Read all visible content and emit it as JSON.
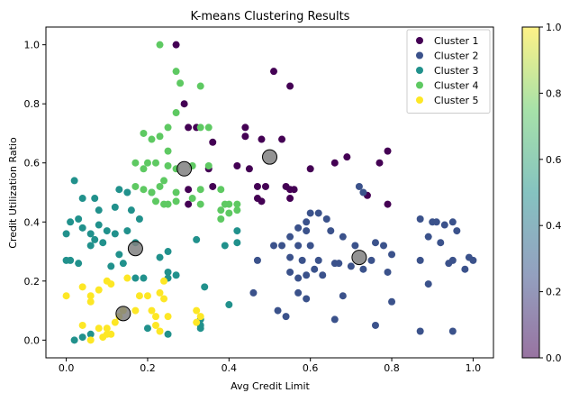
{
  "chart_data": {
    "type": "scatter",
    "title": "K-means Clustering Results",
    "xlabel": "Avg Credit Limit",
    "ylabel": "Credit Utilization Ratio",
    "xlim": [
      -0.05,
      1.05
    ],
    "ylim": [
      -0.06,
      1.06
    ],
    "x_ticks": [
      "0.0",
      "0.2",
      "0.4",
      "0.6",
      "0.8",
      "1.0"
    ],
    "y_ticks": [
      "0.0",
      "0.2",
      "0.4",
      "0.6",
      "0.8",
      "1.0"
    ],
    "grid": false,
    "legend_position": "top-right",
    "colorbar": {
      "range": [
        0.0,
        1.0
      ],
      "ticks": [
        "0.0",
        "0.2",
        "0.4",
        "0.6",
        "0.8",
        "1.0"
      ],
      "colormap": "viridis"
    },
    "series": [
      {
        "name": "Cluster 1",
        "color": "#440154",
        "points": [
          [
            0.27,
            1.0
          ],
          [
            0.51,
            0.91
          ],
          [
            0.55,
            0.86
          ],
          [
            0.29,
            0.8
          ],
          [
            0.3,
            0.72
          ],
          [
            0.32,
            0.72
          ],
          [
            0.44,
            0.72
          ],
          [
            0.44,
            0.69
          ],
          [
            0.48,
            0.68
          ],
          [
            0.53,
            0.68
          ],
          [
            0.36,
            0.67
          ],
          [
            0.66,
            0.6
          ],
          [
            0.6,
            0.58
          ],
          [
            0.42,
            0.59
          ],
          [
            0.45,
            0.58
          ],
          [
            0.69,
            0.62
          ],
          [
            0.77,
            0.6
          ],
          [
            0.79,
            0.64
          ],
          [
            0.3,
            0.51
          ],
          [
            0.36,
            0.52
          ],
          [
            0.47,
            0.52
          ],
          [
            0.49,
            0.52
          ],
          [
            0.54,
            0.52
          ],
          [
            0.55,
            0.51
          ],
          [
            0.47,
            0.48
          ],
          [
            0.48,
            0.47
          ],
          [
            0.55,
            0.48
          ],
          [
            0.56,
            0.51
          ],
          [
            0.3,
            0.46
          ],
          [
            0.74,
            0.49
          ],
          [
            0.79,
            0.46
          ],
          [
            0.35,
            0.58
          ]
        ]
      },
      {
        "name": "Cluster 2",
        "color": "#3b528b",
        "points": [
          [
            0.72,
            0.52
          ],
          [
            0.73,
            0.5
          ],
          [
            0.6,
            0.43
          ],
          [
            0.59,
            0.4
          ],
          [
            0.62,
            0.43
          ],
          [
            0.64,
            0.41
          ],
          [
            0.57,
            0.38
          ],
          [
            0.59,
            0.37
          ],
          [
            0.51,
            0.32
          ],
          [
            0.53,
            0.32
          ],
          [
            0.55,
            0.35
          ],
          [
            0.57,
            0.32
          ],
          [
            0.6,
            0.32
          ],
          [
            0.65,
            0.37
          ],
          [
            0.68,
            0.35
          ],
          [
            0.71,
            0.32
          ],
          [
            0.76,
            0.33
          ],
          [
            0.78,
            0.32
          ],
          [
            0.47,
            0.27
          ],
          [
            0.55,
            0.28
          ],
          [
            0.58,
            0.27
          ],
          [
            0.62,
            0.27
          ],
          [
            0.66,
            0.26
          ],
          [
            0.67,
            0.26
          ],
          [
            0.7,
            0.25
          ],
          [
            0.73,
            0.24
          ],
          [
            0.75,
            0.27
          ],
          [
            0.8,
            0.29
          ],
          [
            0.87,
            0.41
          ],
          [
            0.89,
            0.35
          ],
          [
            0.9,
            0.4
          ],
          [
            0.91,
            0.4
          ],
          [
            0.93,
            0.39
          ],
          [
            0.95,
            0.4
          ],
          [
            0.92,
            0.33
          ],
          [
            0.96,
            0.37
          ],
          [
            0.99,
            0.28
          ],
          [
            1.0,
            0.27
          ],
          [
            0.98,
            0.24
          ],
          [
            0.94,
            0.26
          ],
          [
            0.95,
            0.27
          ],
          [
            0.87,
            0.27
          ],
          [
            0.55,
            0.23
          ],
          [
            0.57,
            0.21
          ],
          [
            0.59,
            0.22
          ],
          [
            0.61,
            0.24
          ],
          [
            0.63,
            0.22
          ],
          [
            0.79,
            0.23
          ],
          [
            0.8,
            0.13
          ],
          [
            0.52,
            0.1
          ],
          [
            0.54,
            0.08
          ],
          [
            0.57,
            0.16
          ],
          [
            0.59,
            0.14
          ],
          [
            0.66,
            0.07
          ],
          [
            0.68,
            0.15
          ],
          [
            0.76,
            0.05
          ],
          [
            0.89,
            0.19
          ],
          [
            0.87,
            0.03
          ],
          [
            0.95,
            0.03
          ],
          [
            0.46,
            0.16
          ]
        ]
      },
      {
        "name": "Cluster 3",
        "color": "#21918c",
        "points": [
          [
            0.02,
            0.54
          ],
          [
            0.04,
            0.48
          ],
          [
            0.07,
            0.48
          ],
          [
            0.01,
            0.4
          ],
          [
            0.03,
            0.41
          ],
          [
            0.04,
            0.38
          ],
          [
            0.06,
            0.36
          ],
          [
            0.08,
            0.39
          ],
          [
            0.0,
            0.36
          ],
          [
            0.07,
            0.34
          ],
          [
            0.09,
            0.33
          ],
          [
            0.1,
            0.37
          ],
          [
            0.12,
            0.36
          ],
          [
            0.12,
            0.45
          ],
          [
            0.13,
            0.51
          ],
          [
            0.15,
            0.5
          ],
          [
            0.16,
            0.44
          ],
          [
            0.18,
            0.41
          ],
          [
            0.15,
            0.37
          ],
          [
            0.17,
            0.33
          ],
          [
            0.21,
            0.5
          ],
          [
            0.0,
            0.27
          ],
          [
            0.03,
            0.26
          ],
          [
            0.06,
            0.32
          ],
          [
            0.11,
            0.25
          ],
          [
            0.13,
            0.29
          ],
          [
            0.14,
            0.26
          ],
          [
            0.17,
            0.21
          ],
          [
            0.19,
            0.21
          ],
          [
            0.23,
            0.28
          ],
          [
            0.25,
            0.3
          ],
          [
            0.27,
            0.22
          ],
          [
            0.32,
            0.34
          ],
          [
            0.34,
            0.18
          ],
          [
            0.39,
            0.32
          ],
          [
            0.42,
            0.37
          ],
          [
            0.42,
            0.33
          ],
          [
            0.4,
            0.12
          ],
          [
            0.25,
            0.23
          ],
          [
            0.25,
            0.02
          ],
          [
            0.02,
            0.0
          ],
          [
            0.04,
            0.01
          ],
          [
            0.06,
            0.02
          ],
          [
            0.2,
            0.04
          ],
          [
            0.33,
            0.05
          ],
          [
            0.33,
            0.07
          ],
          [
            0.33,
            0.04
          ],
          [
            0.25,
            0.21
          ],
          [
            0.08,
            0.44
          ],
          [
            0.01,
            0.27
          ]
        ]
      },
      {
        "name": "Cluster 4",
        "color": "#5ec962",
        "points": [
          [
            0.23,
            1.0
          ],
          [
            0.27,
            0.91
          ],
          [
            0.28,
            0.87
          ],
          [
            0.33,
            0.86
          ],
          [
            0.27,
            0.77
          ],
          [
            0.25,
            0.72
          ],
          [
            0.33,
            0.72
          ],
          [
            0.35,
            0.72
          ],
          [
            0.19,
            0.7
          ],
          [
            0.21,
            0.68
          ],
          [
            0.23,
            0.69
          ],
          [
            0.25,
            0.64
          ],
          [
            0.2,
            0.6
          ],
          [
            0.17,
            0.6
          ],
          [
            0.19,
            0.58
          ],
          [
            0.22,
            0.6
          ],
          [
            0.25,
            0.59
          ],
          [
            0.27,
            0.58
          ],
          [
            0.31,
            0.59
          ],
          [
            0.35,
            0.59
          ],
          [
            0.24,
            0.54
          ],
          [
            0.17,
            0.52
          ],
          [
            0.19,
            0.51
          ],
          [
            0.21,
            0.5
          ],
          [
            0.23,
            0.52
          ],
          [
            0.27,
            0.5
          ],
          [
            0.33,
            0.51
          ],
          [
            0.38,
            0.51
          ],
          [
            0.22,
            0.47
          ],
          [
            0.24,
            0.46
          ],
          [
            0.27,
            0.47
          ],
          [
            0.33,
            0.46
          ],
          [
            0.39,
            0.46
          ],
          [
            0.4,
            0.46
          ],
          [
            0.42,
            0.46
          ],
          [
            0.38,
            0.44
          ],
          [
            0.4,
            0.43
          ],
          [
            0.38,
            0.41
          ],
          [
            0.42,
            0.44
          ],
          [
            0.25,
            0.46
          ],
          [
            0.31,
            0.48
          ]
        ]
      },
      {
        "name": "Cluster 5",
        "color": "#fde725",
        "points": [
          [
            0.0,
            0.15
          ],
          [
            0.04,
            0.18
          ],
          [
            0.06,
            0.15
          ],
          [
            0.06,
            0.13
          ],
          [
            0.08,
            0.17
          ],
          [
            0.1,
            0.2
          ],
          [
            0.11,
            0.19
          ],
          [
            0.15,
            0.21
          ],
          [
            0.18,
            0.15
          ],
          [
            0.2,
            0.15
          ],
          [
            0.23,
            0.16
          ],
          [
            0.24,
            0.14
          ],
          [
            0.24,
            0.2
          ],
          [
            0.21,
            0.1
          ],
          [
            0.22,
            0.08
          ],
          [
            0.25,
            0.08
          ],
          [
            0.17,
            0.1
          ],
          [
            0.13,
            0.08
          ],
          [
            0.12,
            0.06
          ],
          [
            0.04,
            0.05
          ],
          [
            0.08,
            0.04
          ],
          [
            0.1,
            0.04
          ],
          [
            0.11,
            0.02
          ],
          [
            0.09,
            0.01
          ],
          [
            0.06,
            0.0
          ],
          [
            0.22,
            0.05
          ],
          [
            0.23,
            0.03
          ],
          [
            0.32,
            0.1
          ],
          [
            0.33,
            0.08
          ],
          [
            0.32,
            0.06
          ],
          [
            0.14,
            0.1
          ],
          [
            0.1,
            0.02
          ]
        ]
      }
    ],
    "centroids": {
      "color": "#808080",
      "points": [
        [
          0.29,
          0.58
        ],
        [
          0.5,
          0.62
        ],
        [
          0.72,
          0.28
        ],
        [
          0.17,
          0.31
        ],
        [
          0.14,
          0.09
        ]
      ]
    }
  }
}
